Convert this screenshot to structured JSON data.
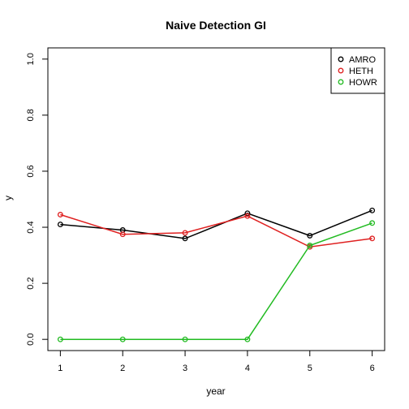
{
  "chart_data": {
    "type": "line",
    "title": "Naive Detection GI",
    "xlabel": "year",
    "ylabel": "y",
    "x": [
      1,
      2,
      3,
      4,
      5,
      6
    ],
    "xlim": [
      0.8,
      6.2
    ],
    "ylim": [
      -0.04,
      1.04
    ],
    "xticks": [
      1,
      2,
      3,
      4,
      5,
      6
    ],
    "yticks": [
      "0.0",
      "0.2",
      "0.4",
      "0.6",
      "0.8",
      "1.0"
    ],
    "grid": false,
    "legend_position": "top-right",
    "series": [
      {
        "name": "AMRO",
        "color": "#000000",
        "marker": "circle",
        "values": [
          0.41,
          0.39,
          0.36,
          0.45,
          0.37,
          0.46
        ]
      },
      {
        "name": "HETH",
        "color": "#DF2020",
        "marker": "circle",
        "values": [
          0.445,
          0.375,
          0.38,
          0.44,
          0.33,
          0.36
        ]
      },
      {
        "name": "HOWR",
        "color": "#22BB22",
        "marker": "circle",
        "values": [
          0.0,
          0.0,
          0.0,
          0.0,
          0.335,
          0.415
        ]
      }
    ]
  }
}
